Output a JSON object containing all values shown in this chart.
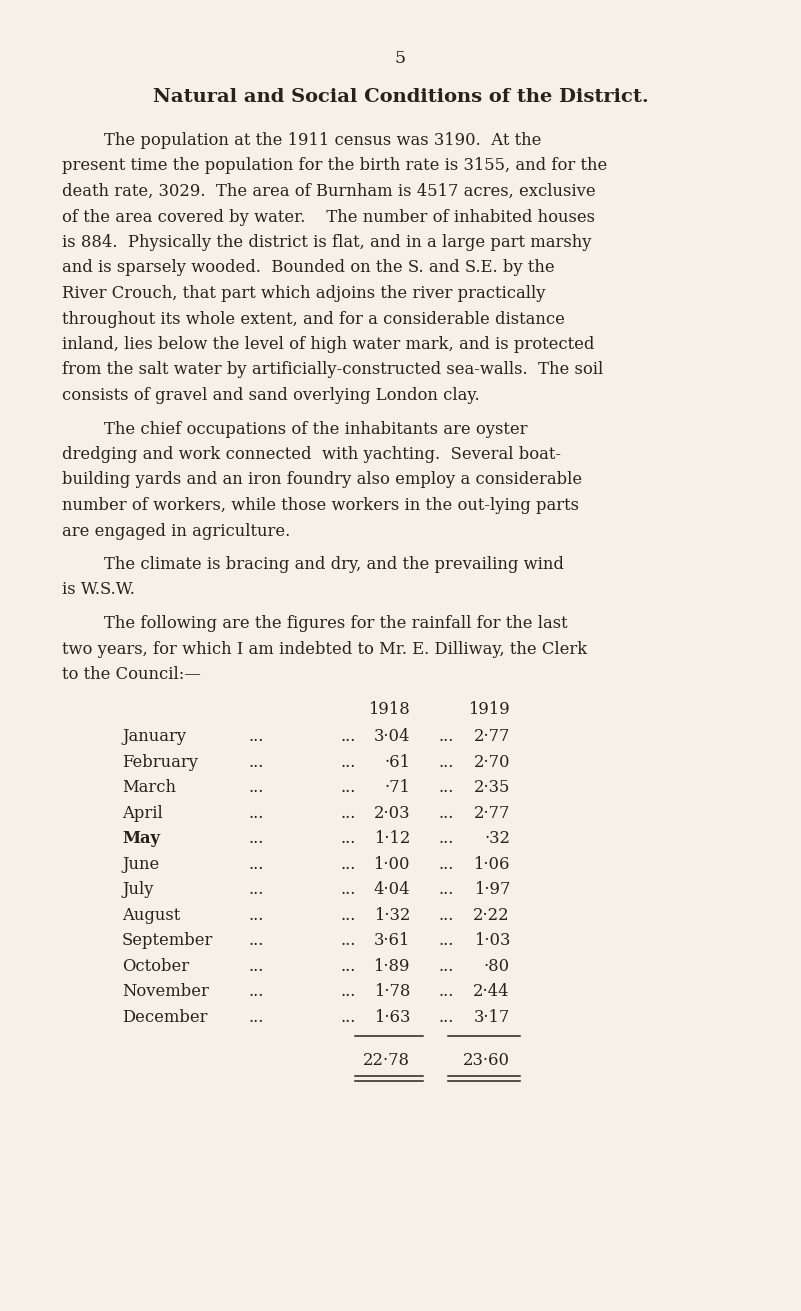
{
  "background_color": "#f5f0e8",
  "text_color": "#2a2218",
  "page_number": "5",
  "title": "Natural and Social Conditions of the District.",
  "lines_p1": [
    "        The population at the 1911 census was 3190.  At the",
    "present time the population for the birth rate is 3155, and for the",
    "death rate, 3029.  The area of Burnham is 4517 acres, exclusive",
    "of the area covered by water.    The number of inhabited houses",
    "is 884.  Physically the district is flat, and in a large part marshy",
    "and is sparsely wooded.  Bounded on the S. and S.E. by the",
    "River Crouch, that part which adjoins the river practically",
    "throughout its whole extent, and for a considerable distance",
    "inland, lies below the level of high water mark, and is protected",
    "from the salt water by artificially-constructed sea-walls.  The soil",
    "consists of gravel and sand overlying London clay."
  ],
  "lines_p2": [
    "        The chief occupations of the inhabitants are oyster",
    "dredging and work connected  with yachting.  Several boat-",
    "building yards and an iron foundry also employ a considerable",
    "number of workers, while those workers in the out-lying parts",
    "are engaged in agriculture."
  ],
  "lines_p3": [
    "        The climate is bracing and dry, and the prevailing wind",
    "is W.S.W."
  ],
  "lines_p4": [
    "        The following are the figures for the rainfall for the last",
    "two years, for which I am indebted to Mr. E. Dilliway, the Clerk",
    "to the Council:—"
  ],
  "col_header_1918": "1918",
  "col_header_1919": "1919",
  "months": [
    "January",
    "February",
    "March",
    "April",
    "May",
    "June",
    "July",
    "August",
    "September",
    "October",
    "November",
    "December"
  ],
  "values_1918": [
    "3·04",
    "·61",
    "·71",
    "2·03",
    "1·12",
    "1·00",
    "4·04",
    "1·32",
    "3·61",
    "1·89",
    "1·78",
    "1·63"
  ],
  "values_1919": [
    "2·77",
    "2·70",
    "2·35",
    "2·77",
    "·32",
    "1·06",
    "1·97",
    "2·22",
    "1·03",
    "·80",
    "2·44",
    "3·17"
  ],
  "total_1918": "22·78",
  "total_1919": "23·60",
  "bold_months": [
    "May"
  ]
}
